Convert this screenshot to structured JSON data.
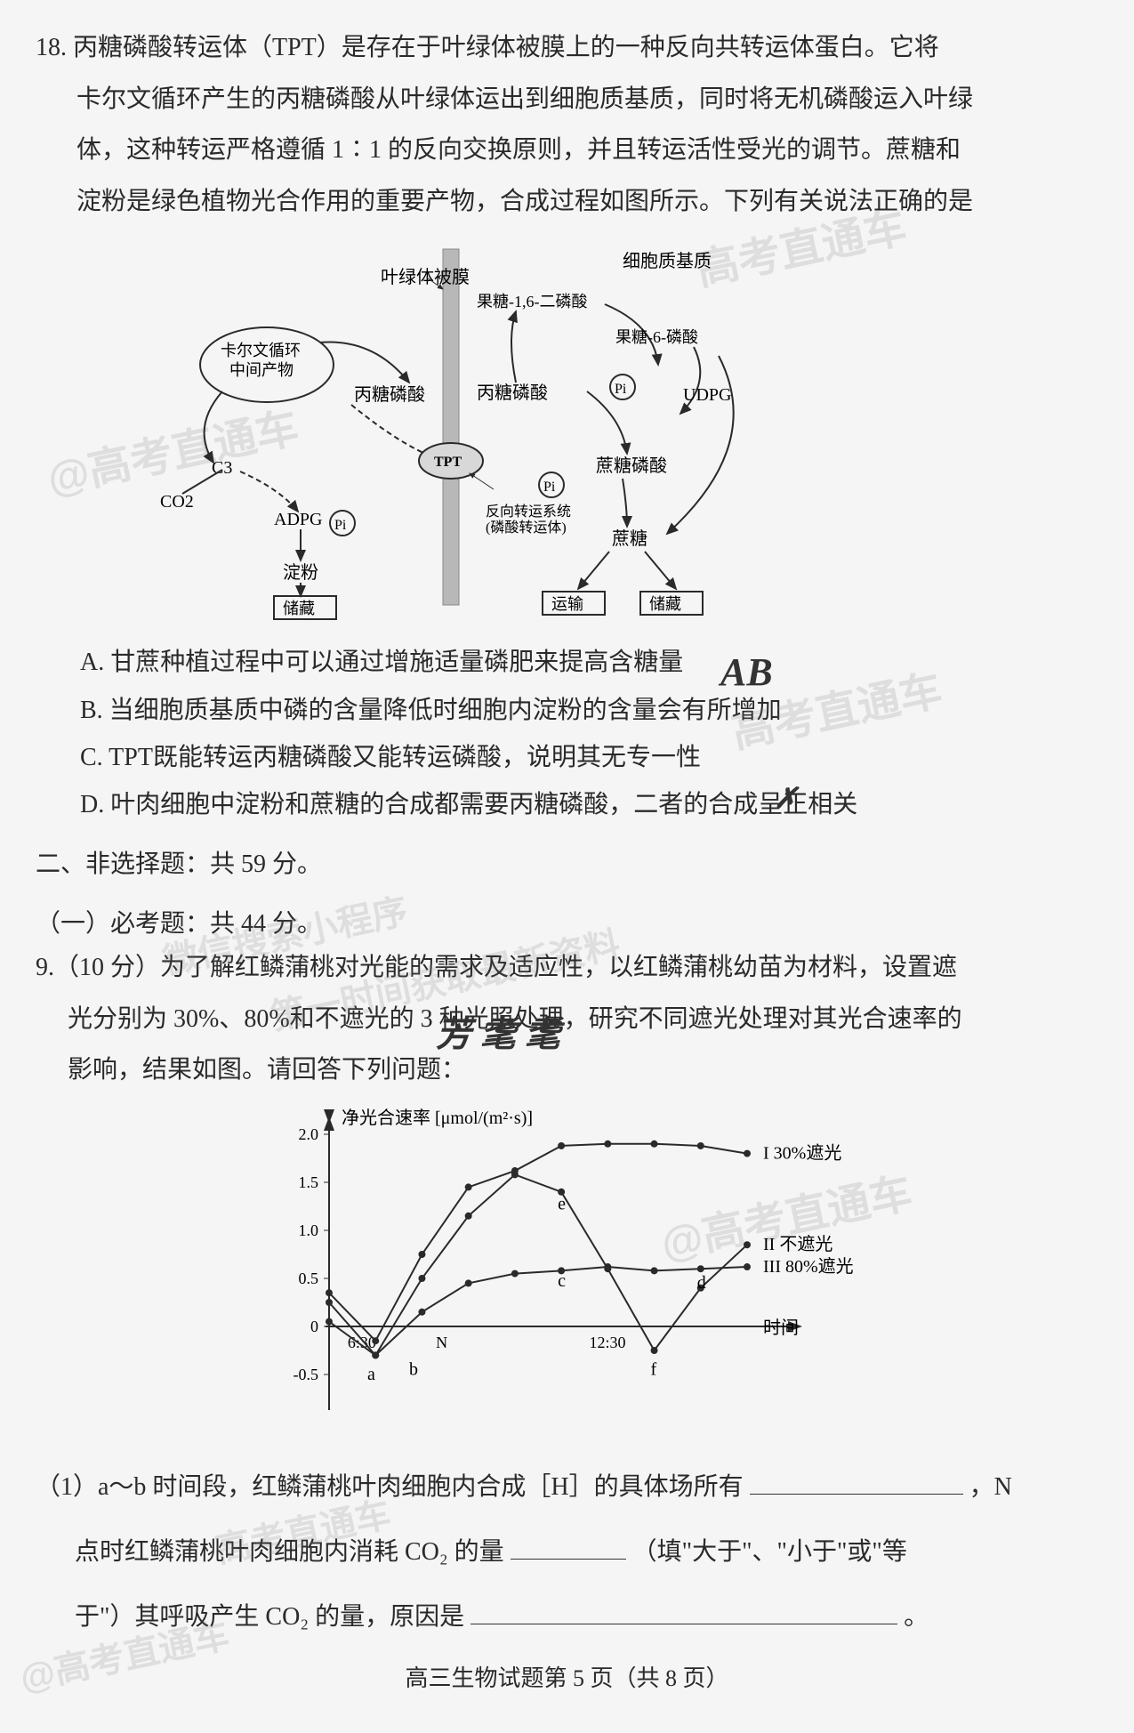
{
  "q18": {
    "number": "18.",
    "text_lines": [
      "丙糖磷酸转运体（TPT）是存在于叶绿体被膜上的一种反向共转运体蛋白。它将",
      "卡尔文循环产生的丙糖磷酸从叶绿体运出到细胞质基质，同时将无机磷酸运入叶绿",
      "体，这种转运严格遵循 1∶1 的反向交换原则，并且转运活性受光的调节。蔗糖和",
      "淀粉是绿色植物光合作用的重要产物，合成过程如图所示。下列有关说法正确的是"
    ],
    "diagram": {
      "labels": {
        "membrane": "叶绿体被膜",
        "cytoplasm": "细胞质基质",
        "calvin": "卡尔文循环\\n中间产物",
        "triose_left": "丙糖磷酸",
        "triose_right": "丙糖磷酸",
        "c3": "C3",
        "co2": "CO2",
        "adpg": "ADPG",
        "pi": "Pi",
        "starch": "淀粉",
        "store_l": "储藏",
        "f16bp": "果糖-1,6-二磷酸",
        "f6p": "果糖-6-磷酸",
        "udpg": "UDPG",
        "sucrose_p": "蔗糖磷酸",
        "sucrose": "蔗糖",
        "transport": "运输",
        "store_r": "储藏",
        "tpt": "TPT",
        "antiport": "反向转运系统\\n(磷酸转运体)"
      },
      "colors": {
        "line": "#2a2a2a",
        "membrane": "#a0a0a0",
        "box_border": "#2a2a2a"
      }
    },
    "options": {
      "A": "A. 甘蔗种植过程中可以通过增施适量磷肥来提高含糖量",
      "B": "B. 当细胞质基质中磷的含量降低时细胞内淀粉的含量会有所增加",
      "C": "C. TPT既能转运丙糖磷酸又能转运磷酸，说明其无专一性",
      "D": "D. 叶肉细胞中淀粉和蔗糖的合成都需要丙糖磷酸，二者的合成呈正相关"
    },
    "handwritten_ab": "AB",
    "handwritten_check": "✗"
  },
  "section": {
    "head1": "二、非选择题：共 59 分。",
    "head2": "（一）必考题：共 44 分。"
  },
  "q19": {
    "number": "9.",
    "text_lines": [
      "（10 分）为了解红鳞蒲桃对光能的需求及适应性，以红鳞蒲桃幼苗为材料，设置遮",
      "光分别为 30%、80%和不遮光的 3 种光照处理，研究不同遮光处理对其光合速率的",
      "影响，结果如图。请回答下列问题："
    ],
    "chart": {
      "type": "line",
      "ylabel": "净光合速率 [μmol/(m²·s)]",
      "xlabel": "时间",
      "ylim": [
        -0.5,
        2.0
      ],
      "ytick_step": 0.5,
      "yticks": [
        "-0.5",
        "0",
        "0.5",
        "1.0",
        "1.5",
        "2.0"
      ],
      "xticks": [
        "6:30",
        "N",
        "12:30"
      ],
      "series": [
        {
          "name": "I 30%遮光",
          "label": "I 30%遮光",
          "points": [
            [
              0,
              0.35
            ],
            [
              1,
              -0.15
            ],
            [
              2,
              0.75
            ],
            [
              3,
              1.45
            ],
            [
              4,
              1.62
            ],
            [
              5,
              1.88
            ],
            [
              6,
              1.9
            ],
            [
              7,
              1.9
            ],
            [
              8,
              1.88
            ],
            [
              9,
              1.8
            ]
          ]
        },
        {
          "name": "II 不遮光",
          "label": "II 不遮光",
          "points": [
            [
              0,
              0.25
            ],
            [
              1,
              -0.3
            ],
            [
              2,
              0.5
            ],
            [
              3,
              1.15
            ],
            [
              4,
              1.58
            ],
            [
              5,
              1.4
            ],
            [
              6,
              0.6
            ],
            [
              7,
              -0.25
            ],
            [
              8,
              0.4
            ],
            [
              9,
              0.85
            ]
          ]
        },
        {
          "name": "III 80%遮光",
          "label": "III 80%遮光",
          "points": [
            [
              0,
              0.05
            ],
            [
              1,
              -0.3
            ],
            [
              2,
              0.15
            ],
            [
              3,
              0.45
            ],
            [
              4,
              0.55
            ],
            [
              5,
              0.58
            ],
            [
              6,
              0.62
            ],
            [
              7,
              0.58
            ],
            [
              8,
              0.6
            ],
            [
              9,
              0.62
            ]
          ]
        }
      ],
      "point_labels": {
        "a": [
          0.9,
          -0.35
        ],
        "b": [
          1.8,
          -0.3
        ],
        "c": [
          5,
          0.62
        ],
        "d": [
          8,
          0.6
        ],
        "e": [
          5,
          1.42
        ],
        "f": [
          7,
          -0.3
        ]
      },
      "colors": {
        "line": "#2a2a2a",
        "axis": "#2a2a2a",
        "bg": "#f5f5f5"
      },
      "label_fontsize": 20
    },
    "fill": {
      "line1_a": "（1）a～b 时间段，红鳞蒲桃叶肉细胞内合成［H］的具体场所有",
      "line1_b": "，N",
      "line2_a": "点时红鳞蒲桃叶肉细胞内消耗 CO₂ 的量",
      "line2_b": "（填\"大于\"、\"小于\"或\"等",
      "line3_a": "于\"）其呼吸产生 CO₂ 的量，原因是",
      "line3_b": "。"
    }
  },
  "footer": "高三生物试题第 5 页（共 8 页）",
  "handwritten_scribble": "芳 耄 耄"
}
